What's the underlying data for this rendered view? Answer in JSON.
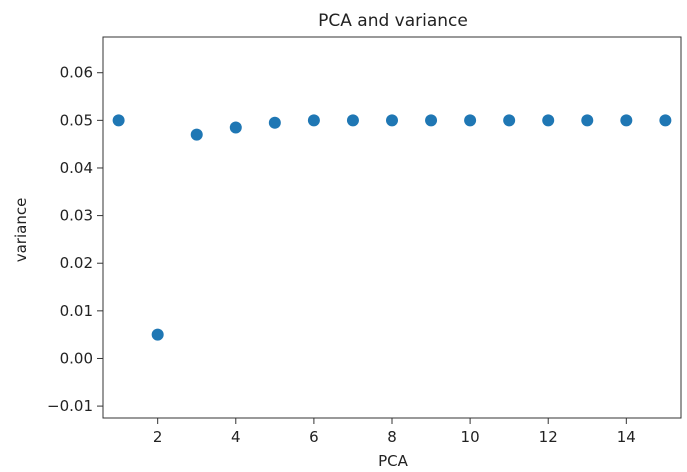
{
  "chart_data": {
    "type": "scatter",
    "title": "PCA and variance",
    "xlabel": "PCA",
    "ylabel": "variance",
    "xlim": [
      0.6,
      15.4
    ],
    "ylim": [
      -0.0125,
      0.0675
    ],
    "x_ticks": [
      2,
      4,
      6,
      8,
      10,
      12,
      14
    ],
    "x_tick_labels": [
      "2",
      "4",
      "6",
      "8",
      "10",
      "12",
      "14"
    ],
    "y_ticks": [
      -0.01,
      0.0,
      0.01,
      0.02,
      0.03,
      0.04,
      0.05,
      0.06
    ],
    "y_tick_labels": [
      "−0.01",
      "0.00",
      "0.01",
      "0.02",
      "0.03",
      "0.04",
      "0.05",
      "0.06"
    ],
    "grid": false,
    "legend": "none",
    "series": [
      {
        "color": "#1f77b4",
        "points": [
          {
            "x": 1,
            "y": 0.05
          },
          {
            "x": 2,
            "y": 0.005
          },
          {
            "x": 3,
            "y": 0.047
          },
          {
            "x": 4,
            "y": 0.0485
          },
          {
            "x": 5,
            "y": 0.0495
          },
          {
            "x": 6,
            "y": 0.05
          },
          {
            "x": 7,
            "y": 0.05
          },
          {
            "x": 8,
            "y": 0.05
          },
          {
            "x": 9,
            "y": 0.05
          },
          {
            "x": 10,
            "y": 0.05
          },
          {
            "x": 11,
            "y": 0.05
          },
          {
            "x": 12,
            "y": 0.05
          },
          {
            "x": 13,
            "y": 0.05
          },
          {
            "x": 14,
            "y": 0.05
          },
          {
            "x": 15,
            "y": 0.05
          }
        ]
      }
    ]
  }
}
